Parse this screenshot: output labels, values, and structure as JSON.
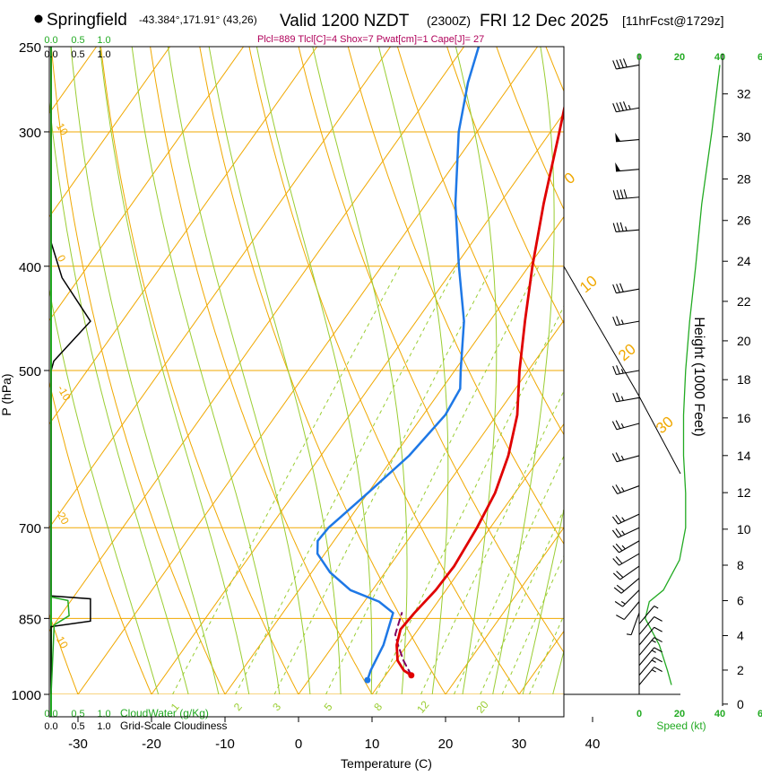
{
  "header": {
    "station": "Springfield",
    "coords": "-43.384°,171.91° (43,26)",
    "valid": "Valid 1200 NZDT",
    "utc": "(2300Z)",
    "date": "FRI 12 Dec 2025",
    "forecast": "[11hrFcst@1729z]",
    "indices": "Plcl=889 Tlcl[C]=4 Shox=7 Pwat[cm]=1 Cape[J]= 27"
  },
  "colors": {
    "isotherm": "#f0a800",
    "dry_adiabat": "#f0a800",
    "moist_adiabat": "#9acd32",
    "mixing_ratio": "#9acd32",
    "temperature": "#e00000",
    "dewpoint": "#1e78e6",
    "parcel": "#800060",
    "cloud_water": "#22aa22",
    "green_text": "#22aa22",
    "indices_text": "#b0005a"
  },
  "chart_data": {
    "type": "line",
    "title": "Skew-T log-P sounding",
    "xlabel": "Temperature (C)",
    "ylabel": "P (hPa)",
    "right_ylabel": "Height (1000 Feet)",
    "x_ticks": [
      "-30",
      "-20",
      "-10",
      "0",
      "10",
      "20",
      "30",
      "40"
    ],
    "y_ticks": [
      "250",
      "300",
      "400",
      "500",
      "700",
      "850",
      "1000"
    ],
    "height_ticks": [
      "0",
      "2",
      "4",
      "6",
      "8",
      "10",
      "12",
      "14",
      "16",
      "18",
      "20",
      "22",
      "24",
      "26",
      "28",
      "30",
      "32"
    ],
    "mixing_ratio_labels": [
      "1",
      "2",
      "3",
      "5",
      "8",
      "12",
      "20"
    ],
    "isotherm_labels": [
      "10",
      "0",
      "-10",
      "-20",
      "10",
      "0",
      "-10",
      "-20",
      "30"
    ],
    "dry_adiabat_labels": [
      "0",
      "10",
      "20",
      "30"
    ],
    "wind_speed_ticks": [
      "0",
      "20",
      "40"
    ],
    "wind_speed_label": "Speed (kt)",
    "cloud_scale_top": [
      "0.0",
      "0.5",
      "1.0"
    ],
    "cloud_scale_top_green": [
      "0.0",
      "0.5",
      "1.0"
    ],
    "cloud_scale_bottom": [
      "0.0",
      "0.5",
      "1.0"
    ],
    "cloud_scale_bottom_green": [
      "0.0",
      "0.5",
      "1.0"
    ],
    "cloud_water_label": "CloudWater (g/Kg)",
    "grid_cloudiness_label": "Grid-Scale Cloudiness",
    "speed_scale_labels": [
      "0",
      "20",
      "40",
      "6"
    ],
    "speed_scale_labels_top": [
      "0",
      "20",
      "40",
      "6"
    ],
    "temperature_profile": [
      {
        "p": 960,
        "t": 13.5
      },
      {
        "p": 950,
        "t": 12.0
      },
      {
        "p": 930,
        "t": 10.2
      },
      {
        "p": 900,
        "t": 8.6
      },
      {
        "p": 870,
        "t": 7.6
      },
      {
        "p": 840,
        "t": 7.9
      },
      {
        "p": 800,
        "t": 8.6
      },
      {
        "p": 760,
        "t": 8.8
      },
      {
        "p": 700,
        "t": 8.2
      },
      {
        "p": 650,
        "t": 7.3
      },
      {
        "p": 600,
        "t": 5.5
      },
      {
        "p": 550,
        "t": 2.8
      },
      {
        "p": 500,
        "t": -1.2
      },
      {
        "p": 450,
        "t": -5.2
      },
      {
        "p": 400,
        "t": -9.5
      },
      {
        "p": 350,
        "t": -14.0
      },
      {
        "p": 300,
        "t": -18.8
      },
      {
        "p": 280,
        "t": -21.0
      },
      {
        "p": 265,
        "t": -21.5
      },
      {
        "p": 250,
        "t": -21.0
      }
    ],
    "dewpoint_profile": [
      {
        "p": 970,
        "t": 8.0
      },
      {
        "p": 950,
        "t": 7.5
      },
      {
        "p": 900,
        "t": 6.8
      },
      {
        "p": 840,
        "t": 5.0
      },
      {
        "p": 820,
        "t": 2.0
      },
      {
        "p": 800,
        "t": -3.0
      },
      {
        "p": 770,
        "t": -7.5
      },
      {
        "p": 740,
        "t": -11.0
      },
      {
        "p": 720,
        "t": -12.2
      },
      {
        "p": 700,
        "t": -12.0
      },
      {
        "p": 650,
        "t": -10.0
      },
      {
        "p": 600,
        "t": -8.0
      },
      {
        "p": 550,
        "t": -7.0
      },
      {
        "p": 520,
        "t": -7.5
      },
      {
        "p": 500,
        "t": -9.2
      },
      {
        "p": 450,
        "t": -13.5
      },
      {
        "p": 400,
        "t": -19.5
      },
      {
        "p": 350,
        "t": -26.0
      },
      {
        "p": 300,
        "t": -32.5
      },
      {
        "p": 270,
        "t": -36.0
      },
      {
        "p": 250,
        "t": -38.0
      }
    ],
    "parcel_profile": [
      {
        "p": 960,
        "t": 13.5
      },
      {
        "p": 930,
        "t": 11.0
      },
      {
        "p": 900,
        "t": 8.8
      },
      {
        "p": 880,
        "t": 7.4
      },
      {
        "p": 860,
        "t": 6.8
      },
      {
        "p": 840,
        "t": 6.2
      }
    ],
    "cloudiness_profile": [
      {
        "p": 250,
        "v": 0.0
      },
      {
        "p": 380,
        "v": 0.0
      },
      {
        "p": 410,
        "v": 0.2
      },
      {
        "p": 450,
        "v": 0.72
      },
      {
        "p": 490,
        "v": 0.05
      },
      {
        "p": 500,
        "v": 0.0
      },
      {
        "p": 810,
        "v": 0.0
      },
      {
        "p": 815,
        "v": 0.72
      },
      {
        "p": 855,
        "v": 0.72
      },
      {
        "p": 865,
        "v": 0.0
      },
      {
        "p": 1000,
        "v": 0.0
      }
    ],
    "cloud_water_profile": [
      {
        "p": 250,
        "v": 0.0
      },
      {
        "p": 812,
        "v": 0.0
      },
      {
        "p": 818,
        "v": 0.28
      },
      {
        "p": 845,
        "v": 0.3
      },
      {
        "p": 862,
        "v": 0.05
      },
      {
        "p": 1000,
        "v": 0.0
      }
    ],
    "wind_speed_profile": [
      {
        "p": 980,
        "kt": 16
      },
      {
        "p": 950,
        "kt": 14
      },
      {
        "p": 900,
        "kt": 10
      },
      {
        "p": 850,
        "kt": 3
      },
      {
        "p": 820,
        "kt": 5
      },
      {
        "p": 800,
        "kt": 12
      },
      {
        "p": 750,
        "kt": 20
      },
      {
        "p": 700,
        "kt": 23
      },
      {
        "p": 650,
        "kt": 23
      },
      {
        "p": 600,
        "kt": 22
      },
      {
        "p": 550,
        "kt": 22
      },
      {
        "p": 500,
        "kt": 23
      },
      {
        "p": 450,
        "kt": 25
      },
      {
        "p": 400,
        "kt": 28
      },
      {
        "p": 350,
        "kt": 31
      },
      {
        "p": 300,
        "kt": 36
      },
      {
        "p": 260,
        "kt": 40
      }
    ],
    "wind_barbs": [
      {
        "p": 260,
        "dir": 260,
        "kt": 40
      },
      {
        "p": 285,
        "dir": 260,
        "kt": 45
      },
      {
        "p": 305,
        "dir": 265,
        "kt": 50
      },
      {
        "p": 325,
        "dir": 265,
        "kt": 50
      },
      {
        "p": 345,
        "dir": 265,
        "kt": 40
      },
      {
        "p": 370,
        "dir": 265,
        "kt": 35
      },
      {
        "p": 420,
        "dir": 260,
        "kt": 30
      },
      {
        "p": 450,
        "dir": 260,
        "kt": 25
      },
      {
        "p": 500,
        "dir": 260,
        "kt": 25
      },
      {
        "p": 530,
        "dir": 260,
        "kt": 25
      },
      {
        "p": 560,
        "dir": 255,
        "kt": 25
      },
      {
        "p": 600,
        "dir": 255,
        "kt": 25
      },
      {
        "p": 640,
        "dir": 250,
        "kt": 25
      },
      {
        "p": 680,
        "dir": 245,
        "kt": 25
      },
      {
        "p": 700,
        "dir": 245,
        "kt": 25
      },
      {
        "p": 720,
        "dir": 240,
        "kt": 25
      },
      {
        "p": 740,
        "dir": 240,
        "kt": 20
      },
      {
        "p": 760,
        "dir": 235,
        "kt": 20
      },
      {
        "p": 780,
        "dir": 230,
        "kt": 20
      },
      {
        "p": 800,
        "dir": 225,
        "kt": 15
      },
      {
        "p": 820,
        "dir": 220,
        "kt": 10
      },
      {
        "p": 840,
        "dir": 200,
        "kt": 5
      },
      {
        "p": 860,
        "dir": 40,
        "kt": 5
      },
      {
        "p": 880,
        "dir": 40,
        "kt": 10
      },
      {
        "p": 900,
        "dir": 40,
        "kt": 10
      },
      {
        "p": 920,
        "dir": 40,
        "kt": 15
      },
      {
        "p": 940,
        "dir": 40,
        "kt": 15
      },
      {
        "p": 960,
        "dir": 40,
        "kt": 15
      },
      {
        "p": 980,
        "dir": 40,
        "kt": 15
      }
    ],
    "xlim": [
      -35,
      45
    ],
    "ylim": [
      1000,
      250
    ]
  }
}
